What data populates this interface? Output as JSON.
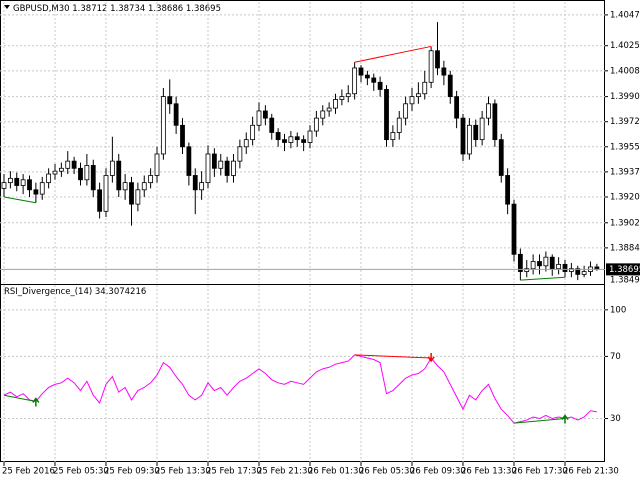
{
  "chart_data": [
    {
      "type": "candlestick",
      "symbol": "GBPUSD,M30",
      "categories": [
        "25 Feb 2016",
        null,
        null,
        null,
        null,
        null,
        null,
        null,
        "25 Feb 05:30",
        null,
        null,
        null,
        null,
        null,
        null,
        null,
        "25 Feb 09:30",
        null,
        null,
        null,
        null,
        null,
        null,
        null,
        "25 Feb 13:30",
        null,
        null,
        null,
        null,
        null,
        null,
        null,
        "25 Feb 17:30",
        null,
        null,
        null,
        null,
        null,
        null,
        null,
        "25 Feb 21:30",
        null,
        null,
        null,
        null,
        null,
        null,
        null,
        "26 Feb 01:30",
        null,
        null,
        null,
        null,
        null,
        null,
        null,
        "26 Feb 05:30",
        null,
        null,
        null,
        null,
        null,
        null,
        null,
        "26 Feb 09:30",
        null,
        null,
        null,
        null,
        null,
        null,
        null,
        "26 Feb 13:30",
        null,
        null,
        null,
        null,
        null,
        null,
        null,
        "26 Feb 17:30",
        null,
        null,
        null,
        null,
        null,
        null,
        null,
        "26 Feb 21:30",
        null,
        null,
        null,
        null,
        null
      ],
      "open": [
        1.3926,
        1.393,
        1.3933,
        1.3928,
        1.3932,
        1.3925,
        1.3922,
        1.393,
        1.3936,
        1.3938,
        1.394,
        1.3945,
        1.394,
        1.3932,
        1.3942,
        1.3925,
        1.391,
        1.3935,
        1.3945,
        1.3925,
        1.393,
        1.3915,
        1.3925,
        1.393,
        1.3935,
        1.395,
        1.399,
        1.3985,
        1.397,
        1.3955,
        1.3935,
        1.3925,
        1.393,
        1.395,
        1.394,
        1.3945,
        1.3935,
        1.3945,
        1.3955,
        1.396,
        1.397,
        1.398,
        1.3975,
        1.3965,
        1.396,
        1.3958,
        1.3962,
        1.396,
        1.3958,
        1.3966,
        1.3975,
        1.398,
        1.3982,
        1.3988,
        1.399,
        1.3992,
        1.401,
        1.4005,
        1.4003,
        1.4,
        1.3995,
        1.396,
        1.3965,
        1.3975,
        1.3985,
        1.399,
        1.3992,
        1.4,
        1.4022,
        1.401,
        1.4005,
        1.399,
        1.3975,
        1.395,
        1.397,
        1.396,
        1.3975,
        1.3985,
        1.396,
        1.3935,
        1.3915,
        1.388,
        1.3868,
        1.387,
        1.3875,
        1.3872,
        1.3878,
        1.387,
        1.3873,
        1.3868,
        1.387,
        1.3866,
        1.3868,
        1.38712
      ],
      "high": [
        1.3936,
        1.3938,
        1.3937,
        1.3936,
        1.3935,
        1.393,
        1.3934,
        1.394,
        1.3943,
        1.3944,
        1.3952,
        1.3948,
        1.3944,
        1.395,
        1.3946,
        1.393,
        1.394,
        1.3962,
        1.395,
        1.3936,
        1.3934,
        1.393,
        1.3935,
        1.394,
        1.3955,
        1.3996,
        1.4002,
        1.399,
        1.3975,
        1.3958,
        1.394,
        1.3938,
        1.3956,
        1.3954,
        1.395,
        1.3948,
        1.395,
        1.396,
        1.3965,
        1.3976,
        1.3986,
        1.3984,
        1.3978,
        1.3968,
        1.3964,
        1.3966,
        1.3965,
        1.3963,
        1.397,
        1.398,
        1.3984,
        1.3986,
        1.3992,
        1.3995,
        1.3998,
        1.4014,
        1.4012,
        1.4008,
        1.4006,
        1.4004,
        1.3998,
        1.397,
        1.398,
        1.399,
        1.3996,
        1.4,
        1.4008,
        1.4025,
        1.4042,
        1.4015,
        1.4008,
        1.3994,
        1.3978,
        1.3975,
        1.3974,
        1.398,
        1.399,
        1.3988,
        1.3964,
        1.394,
        1.3918,
        1.3884,
        1.3876,
        1.388,
        1.388,
        1.3882,
        1.388,
        1.3878,
        1.3876,
        1.3874,
        1.3872,
        1.3872,
        1.3875,
        1.38734
      ],
      "low": [
        1.392,
        1.3926,
        1.3924,
        1.3922,
        1.392,
        1.3916,
        1.3918,
        1.3926,
        1.3932,
        1.3934,
        1.3936,
        1.3936,
        1.3928,
        1.3928,
        1.392,
        1.3905,
        1.3906,
        1.393,
        1.392,
        1.3918,
        1.39,
        1.391,
        1.392,
        1.3926,
        1.393,
        1.3946,
        1.3978,
        1.3964,
        1.395,
        1.3928,
        1.3908,
        1.3918,
        1.3926,
        1.3934,
        1.3935,
        1.393,
        1.393,
        1.394,
        1.395,
        1.3956,
        1.3966,
        1.397,
        1.396,
        1.3955,
        1.3952,
        1.3954,
        1.3955,
        1.3952,
        1.3954,
        1.3962,
        1.397,
        1.3976,
        1.3978,
        1.3984,
        1.3986,
        1.3988,
        1.4,
        1.3998,
        1.3994,
        1.399,
        1.3955,
        1.3955,
        1.396,
        1.397,
        1.398,
        1.3985,
        1.3988,
        1.3996,
        1.4005,
        1.3998,
        1.3985,
        1.3968,
        1.3945,
        1.3946,
        1.3955,
        1.3956,
        1.397,
        1.3955,
        1.393,
        1.3908,
        1.3875,
        1.3862,
        1.3864,
        1.3866,
        1.3866,
        1.3868,
        1.3865,
        1.3866,
        1.3864,
        1.3864,
        1.3862,
        1.3864,
        1.3865,
        1.38686
      ],
      "close": [
        1.393,
        1.3933,
        1.3928,
        1.3932,
        1.3925,
        1.3922,
        1.393,
        1.3936,
        1.3938,
        1.394,
        1.3945,
        1.394,
        1.3932,
        1.3942,
        1.3925,
        1.391,
        1.3935,
        1.3945,
        1.3925,
        1.393,
        1.3915,
        1.3925,
        1.393,
        1.3935,
        1.395,
        1.399,
        1.3985,
        1.397,
        1.3955,
        1.3935,
        1.3925,
        1.393,
        1.395,
        1.394,
        1.3945,
        1.3935,
        1.3945,
        1.3955,
        1.396,
        1.397,
        1.398,
        1.3975,
        1.3965,
        1.396,
        1.3958,
        1.3962,
        1.396,
        1.3958,
        1.3966,
        1.3975,
        1.398,
        1.3982,
        1.3988,
        1.399,
        1.3992,
        1.401,
        1.4005,
        1.4003,
        1.4,
        1.3995,
        1.396,
        1.3965,
        1.3975,
        1.3985,
        1.399,
        1.3992,
        1.4,
        1.4022,
        1.401,
        1.4005,
        1.399,
        1.3975,
        1.395,
        1.397,
        1.396,
        1.3975,
        1.3985,
        1.396,
        1.3935,
        1.3915,
        1.388,
        1.3868,
        1.387,
        1.3875,
        1.3872,
        1.3878,
        1.387,
        1.3873,
        1.3868,
        1.387,
        1.3866,
        1.3868,
        1.38712,
        1.38695
      ],
      "ylim": [
        1.386,
        1.4056
      ],
      "yticks": [
        {
          "value": 1.4047,
          "label": "1.40470"
        },
        1.40255,
        {
          "value": 1.4008,
          "label": "1.40080"
        },
        {
          "value": 1.399,
          "label": "1.39900"
        },
        1.39725,
        {
          "value": 1.3955,
          "label": "1.39550"
        },
        1.39375,
        {
          "value": 1.392,
          "label": "1.39200"
        },
        {
          "value": 1.3902,
          "label": "1.39020"
        },
        1.38845
      ],
      "min_label": "1.38495",
      "grid": true,
      "up_color": "#ffffff",
      "down_color": "#000000"
    },
    {
      "type": "line",
      "title": "RSI_Divergence_(14)",
      "color": "#ff00ff",
      "values": [
        45,
        47,
        44,
        46,
        42,
        41,
        46,
        50,
        52,
        53,
        56,
        53,
        48,
        54,
        45,
        40,
        52,
        57,
        47,
        50,
        42,
        48,
        50,
        53,
        58,
        66,
        63,
        57,
        52,
        45,
        42,
        45,
        53,
        48,
        50,
        45,
        50,
        54,
        56,
        59,
        62,
        59,
        55,
        53,
        52,
        54,
        53,
        52,
        56,
        60,
        62,
        63,
        65,
        66,
        67,
        71,
        70,
        69,
        68,
        66,
        46,
        48,
        52,
        56,
        58,
        59,
        62,
        69,
        64,
        60,
        52,
        44,
        36,
        45,
        42,
        48,
        52,
        43,
        36,
        32,
        27,
        28,
        29,
        31,
        30,
        32,
        30,
        31,
        30,
        31,
        29,
        31,
        35,
        34.3074216
      ],
      "ylim": [
        2,
        116
      ],
      "yticks": [
        100,
        70,
        30
      ],
      "grid": true
    }
  ]
}
